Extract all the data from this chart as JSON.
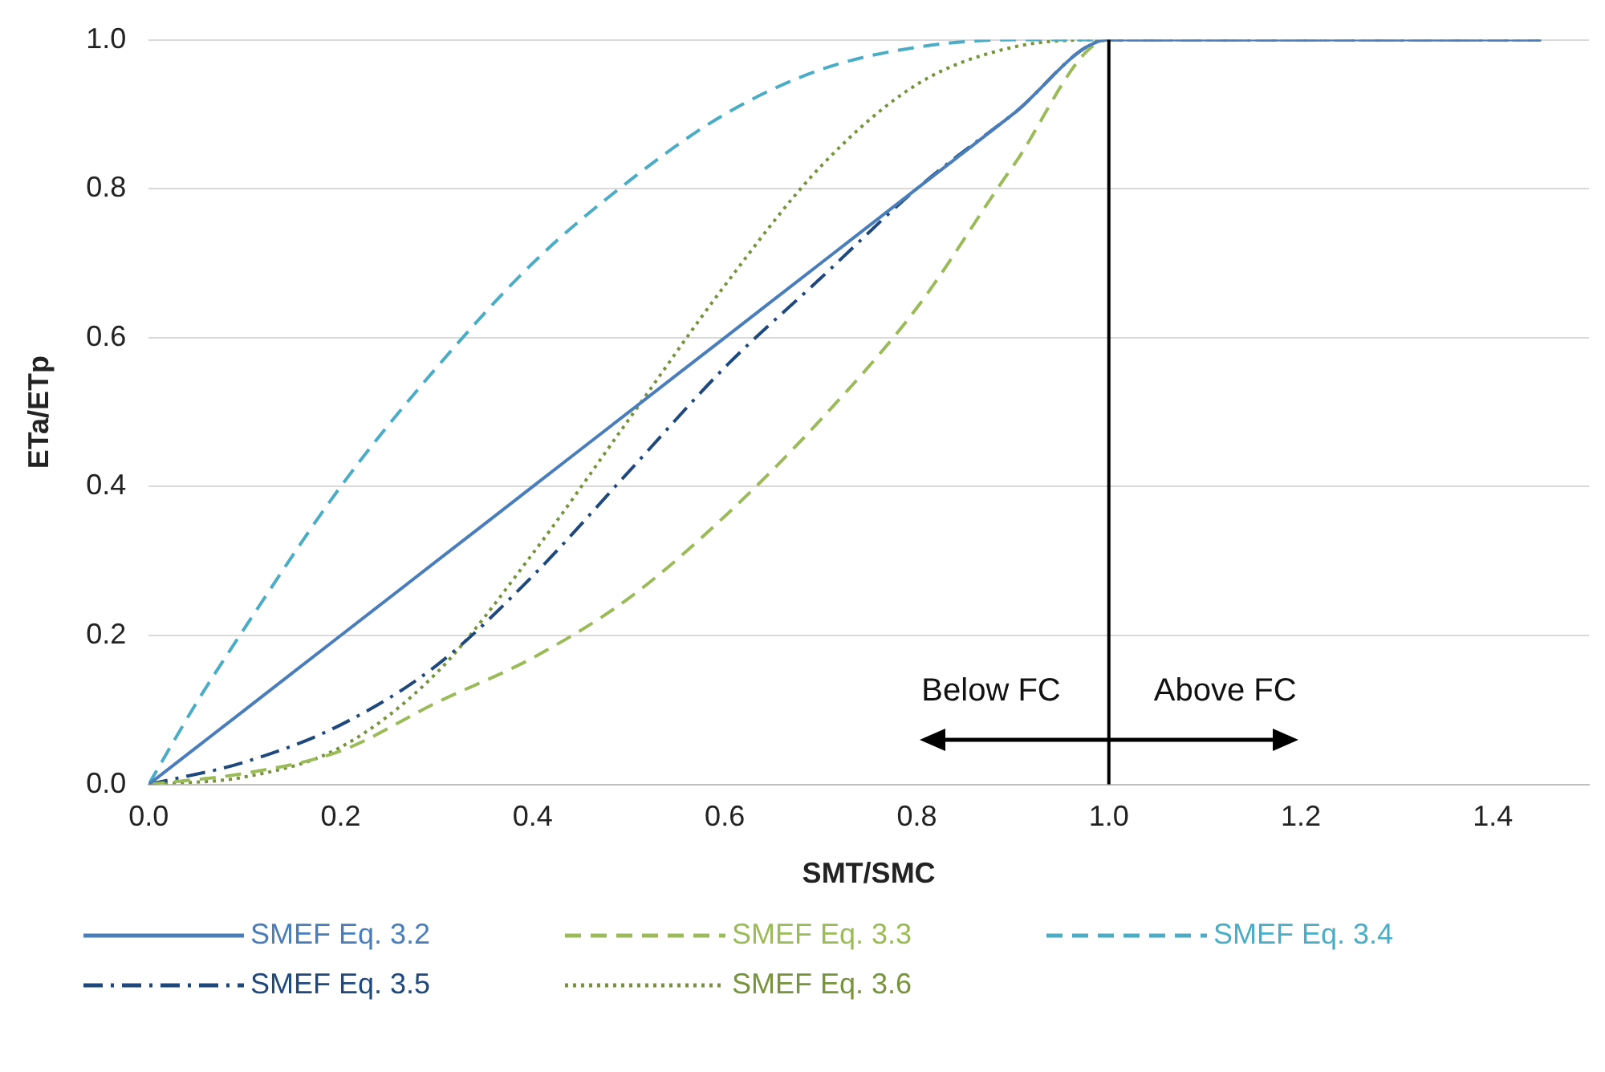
{
  "chart_data": {
    "type": "line",
    "xlabel": "SMT/SMC",
    "ylabel": "ETa/ETp",
    "x": [
      0,
      0.1,
      0.2,
      0.3,
      0.4,
      0.5,
      0.6,
      0.7,
      0.8,
      0.9,
      1.0,
      1.45
    ],
    "series": [
      {
        "name": "SMEF Eq. 3.2",
        "color": "#4a7ebb",
        "line_style": "solid",
        "values": [
          0,
          0.1,
          0.2,
          0.3,
          0.4,
          0.5,
          0.6,
          0.7,
          0.8,
          0.9,
          1.0,
          1.0
        ]
      },
      {
        "name": "SMEF Eq. 3.3",
        "color": "#9bbb59",
        "line_style": "dashed",
        "values": [
          0,
          0.015,
          0.045,
          0.11,
          0.17,
          0.25,
          0.36,
          0.49,
          0.64,
          0.83,
          1.0,
          1.0
        ]
      },
      {
        "name": "SMEF Eq. 3.4",
        "color": "#4bacc6",
        "line_style": "dashed",
        "x": [
          0,
          0.05,
          0.1,
          0.2,
          0.3,
          0.4,
          0.5,
          0.6,
          0.7,
          0.8,
          0.9,
          1.0,
          1.45
        ],
        "values": [
          0,
          0.11,
          0.21,
          0.4,
          0.56,
          0.7,
          0.81,
          0.9,
          0.96,
          0.99,
          1.0,
          1.0,
          1.0
        ]
      },
      {
        "name": "SMEF Eq. 3.5",
        "color": "#1f497d",
        "line_style": "dashdot",
        "values": [
          0,
          0.03,
          0.08,
          0.16,
          0.28,
          0.42,
          0.56,
          0.68,
          0.8,
          0.9,
          1.0,
          1.0
        ]
      },
      {
        "name": "SMEF Eq. 3.6",
        "color": "#77933c",
        "line_style": "dotted",
        "values": [
          0,
          0.01,
          0.05,
          0.15,
          0.31,
          0.49,
          0.67,
          0.83,
          0.94,
          0.99,
          1.0,
          1.0
        ]
      }
    ],
    "xlim": [
      0,
      1.5
    ],
    "xticks": [
      {
        "value": 0,
        "label": "0.0"
      },
      {
        "value": 0.2,
        "label": "0.2"
      },
      {
        "value": 0.4,
        "label": "0.4"
      },
      {
        "value": 0.6,
        "label": "0.6"
      },
      {
        "value": 0.8,
        "label": "0.8"
      },
      {
        "value": 1.0,
        "label": "1.0"
      },
      {
        "value": 1.2,
        "label": "1.2"
      },
      {
        "value": 1.4,
        "label": "1.4"
      }
    ],
    "ylim": [
      0,
      1
    ],
    "yticks": [
      {
        "value": 0,
        "label": "0.0"
      },
      {
        "value": 0.2,
        "label": "0.2"
      },
      {
        "value": 0.4,
        "label": "0.4"
      },
      {
        "value": 0.6,
        "label": "0.6"
      },
      {
        "value": 0.8,
        "label": "0.8"
      },
      {
        "value": 1.0,
        "label": "1.0"
      }
    ],
    "ref_lines": [
      {
        "axis": "x",
        "value": 1.0,
        "color": "#000000"
      }
    ],
    "annotations": [
      "Below FC",
      "Above FC"
    ],
    "grid": "y",
    "legend": "bottom",
    "marker": "none"
  }
}
